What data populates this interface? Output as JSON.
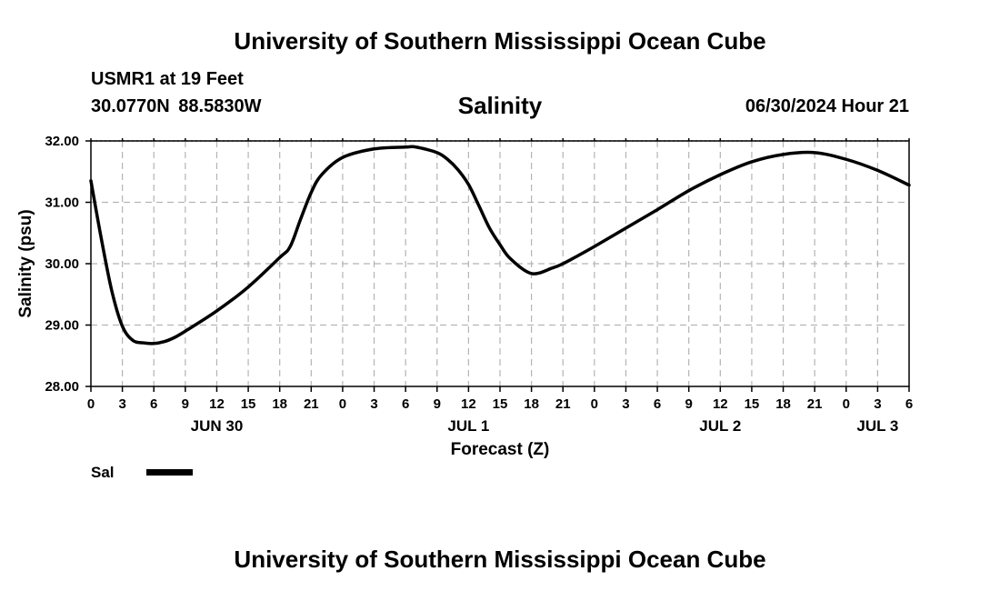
{
  "header": {
    "title": "University of Southern Mississippi Ocean Cube",
    "station": "USMR1 at 19 Feet",
    "coordinates": "30.0770N  88.5830W",
    "timestamp": "06/30/2024 Hour 21"
  },
  "footer": {
    "title": "University of Southern Mississippi Ocean Cube"
  },
  "legend": {
    "label": "Sal"
  },
  "chart_data": {
    "type": "line",
    "title": "Salinity",
    "xlabel": "Forecast (Z)",
    "ylabel": "Salinity (psu)",
    "x_unit": "hours from 00Z Jun 30",
    "xlim": [
      0,
      78
    ],
    "ylim": [
      28.0,
      32.0
    ],
    "y_ticks": [
      "28.00",
      "29.00",
      "30.00",
      "31.00",
      "32.00"
    ],
    "x_tick_labels": [
      "0",
      "3",
      "6",
      "9",
      "12",
      "15",
      "18",
      "21",
      "0",
      "3",
      "6",
      "9",
      "12",
      "15",
      "18",
      "21",
      "0",
      "3",
      "6",
      "9",
      "12",
      "15",
      "18",
      "21",
      "0",
      "3",
      "6"
    ],
    "day_labels": [
      {
        "label": "JUN 30",
        "hour": 12
      },
      {
        "label": "JUL 1",
        "hour": 36
      },
      {
        "label": "JUL 2",
        "hour": 60
      },
      {
        "label": "JUL 3",
        "hour": 75
      }
    ],
    "grid": true,
    "series": [
      {
        "name": "Sal",
        "x": [
          0,
          1,
          2,
          3,
          4,
          5,
          6,
          7,
          8,
          9,
          12,
          15,
          18,
          19,
          20,
          21,
          22,
          24,
          27,
          30,
          31,
          33,
          34,
          35,
          36,
          37,
          38,
          39,
          40,
          42,
          44,
          45,
          46,
          48,
          51,
          54,
          57,
          60,
          63,
          66,
          69,
          72,
          75,
          78
        ],
        "y": [
          31.35,
          30.4,
          29.55,
          28.98,
          28.75,
          28.71,
          28.7,
          28.73,
          28.8,
          28.9,
          29.23,
          29.62,
          30.1,
          30.28,
          30.73,
          31.16,
          31.45,
          31.73,
          31.87,
          31.9,
          31.9,
          31.81,
          31.7,
          31.53,
          31.29,
          30.94,
          30.58,
          30.31,
          30.08,
          29.84,
          29.93,
          30.0,
          30.09,
          30.28,
          30.58,
          30.88,
          31.19,
          31.45,
          31.66,
          31.78,
          31.81,
          31.7,
          31.52,
          31.28
        ]
      }
    ]
  }
}
